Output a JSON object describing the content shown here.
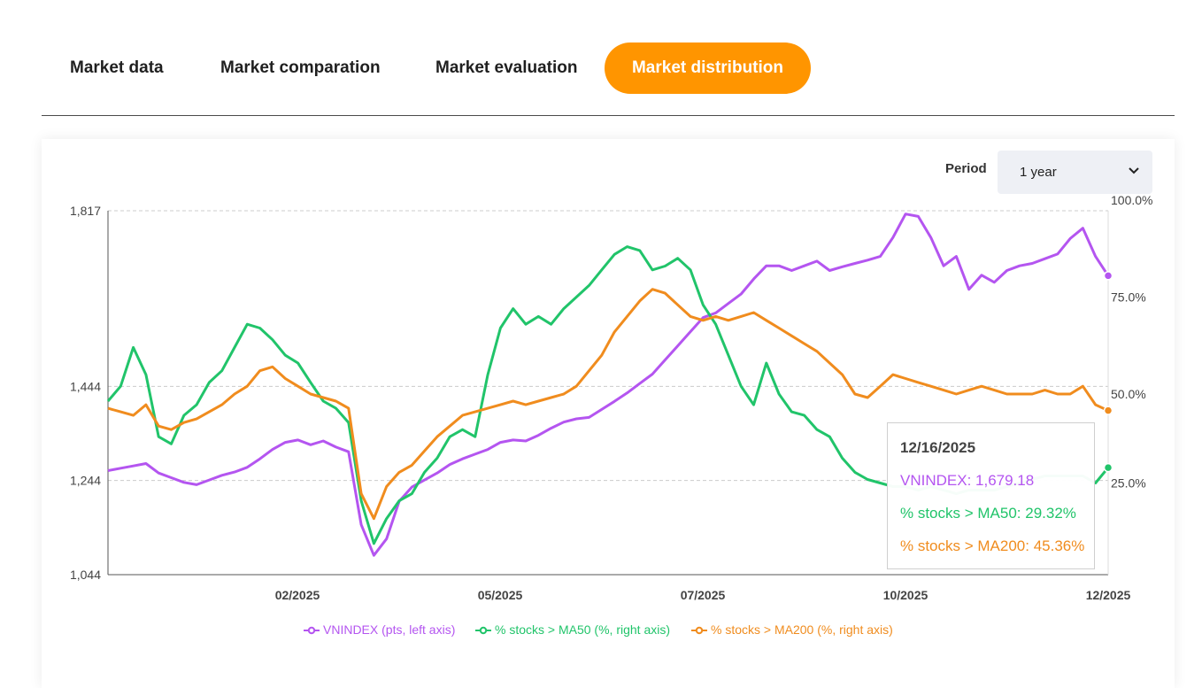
{
  "tabs": [
    {
      "label": "Market data",
      "active": false
    },
    {
      "label": "Market comparation",
      "active": false
    },
    {
      "label": "Market evaluation",
      "active": false
    },
    {
      "label": "Market distribution",
      "active": true
    }
  ],
  "colors": {
    "accent": "#ff9500",
    "vnindex": "#b455f0",
    "ma50": "#21c46a",
    "ma200": "#f08c1e"
  },
  "filters": {
    "period_label": "Period",
    "period_value": "1 year"
  },
  "tooltip": {
    "date": "12/16/2025",
    "vnindex": "VNINDEX: 1,679.18",
    "ma50": "% stocks > MA50: 29.32%",
    "ma200": "% stocks > MA200: 45.36%"
  },
  "chart_data": {
    "type": "line",
    "x_ticks": [
      "02/2025",
      "05/2025",
      "07/2025",
      "10/2025",
      "12/2025"
    ],
    "left_axis": {
      "ticks": [
        "1,817",
        "1,444",
        "1,244",
        "1,044"
      ],
      "min": 1044,
      "max": 1817
    },
    "right_axis": {
      "ticks": [
        "100.0%",
        "75.0%",
        "50.0%",
        "25.0%"
      ]
    },
    "grid": "horizontal dashed",
    "legend_position": "bottom",
    "series": [
      {
        "name": "VNINDEX (pts, left axis)",
        "axis": "left",
        "color": "#b455f0",
        "values": [
          1265,
          1270,
          1275,
          1280,
          1260,
          1250,
          1240,
          1235,
          1245,
          1255,
          1262,
          1272,
          1290,
          1310,
          1325,
          1330,
          1320,
          1328,
          1315,
          1305,
          1150,
          1085,
          1120,
          1200,
          1230,
          1245,
          1260,
          1278,
          1290,
          1300,
          1310,
          1325,
          1330,
          1328,
          1340,
          1355,
          1368,
          1375,
          1378,
          1395,
          1412,
          1430,
          1450,
          1470,
          1500,
          1530,
          1560,
          1590,
          1600,
          1620,
          1640,
          1672,
          1700,
          1700,
          1690,
          1700,
          1710,
          1690,
          1698,
          1705,
          1712,
          1720,
          1760,
          1810,
          1805,
          1760,
          1700,
          1720,
          1650,
          1680,
          1665,
          1690,
          1700,
          1705,
          1715,
          1725,
          1758,
          1780,
          1720,
          1679
        ]
      },
      {
        "name": "% stocks > MA50 (%, right axis)",
        "axis": "right",
        "color": "#21c46a",
        "values": [
          48,
          52,
          62,
          55,
          38,
          36,
          44,
          47,
          53,
          56,
          62,
          68,
          67,
          64,
          60,
          58,
          53,
          48,
          46,
          42,
          20,
          8,
          15,
          20,
          22,
          28,
          32,
          38,
          40,
          38,
          55,
          67,
          72,
          68,
          70,
          68,
          72,
          75,
          78,
          82,
          86,
          88,
          87,
          82,
          83,
          85,
          82,
          73,
          68,
          60,
          52,
          47,
          58,
          50,
          45,
          44,
          40,
          38,
          32,
          28,
          26,
          25,
          24,
          24,
          23,
          24,
          23,
          22,
          23,
          23,
          23,
          24,
          25,
          26,
          27,
          27,
          27,
          27,
          25,
          29.32
        ]
      },
      {
        "name": "% stocks > MA200 (%, right axis)",
        "axis": "right",
        "color": "#f08c1e",
        "values": [
          46,
          45,
          44,
          47,
          41,
          40,
          42,
          43,
          45,
          47,
          50,
          52,
          56,
          57,
          54,
          52,
          50,
          49,
          48,
          46,
          22,
          15,
          24,
          28,
          30,
          34,
          38,
          41,
          44,
          45,
          46,
          47,
          48,
          47,
          48,
          49,
          50,
          52,
          56,
          60,
          66,
          70,
          74,
          77,
          76,
          73,
          70,
          69,
          70,
          69,
          70,
          71,
          69,
          67,
          65,
          63,
          61,
          58,
          55,
          50,
          49,
          52,
          55,
          54,
          53,
          52,
          51,
          50,
          51,
          52,
          51,
          50,
          50,
          50,
          51,
          50,
          50,
          52,
          47,
          45.36
        ]
      }
    ]
  }
}
